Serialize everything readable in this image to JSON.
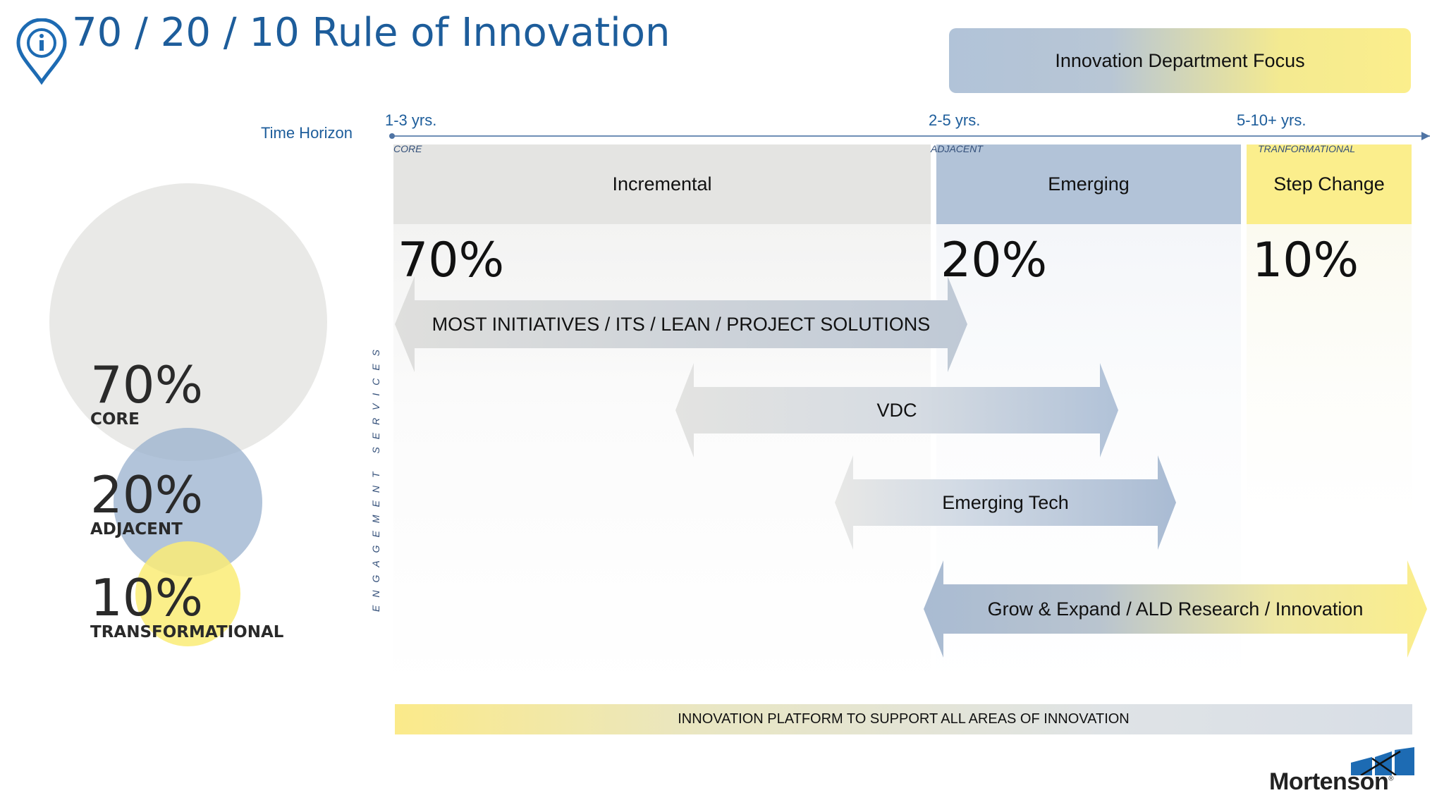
{
  "title": "70 / 20 / 10 Rule of Innovation",
  "focus_label": "Innovation Department Focus",
  "timeline": {
    "label": "Time Horizon",
    "ticks": [
      "1-3 yrs.",
      "2-5 yrs.",
      "5-10+ yrs."
    ]
  },
  "columns": [
    {
      "tag": "CORE",
      "name": "Incremental",
      "percent": "70%",
      "color": "#e4e4e2"
    },
    {
      "tag": "ADJACENT",
      "name": "Emerging",
      "percent": "20%",
      "color": "#b2c3d8"
    },
    {
      "tag": "TRANFORMATIONAL",
      "name": "Step Change",
      "percent": "10%",
      "color": "#fbee8c"
    }
  ],
  "engagement_label": "ENGAGEMENT SERVICES",
  "arrows": [
    {
      "label": "MOST INITIATIVES / ITS / LEAN / PROJECT SOLUTIONS"
    },
    {
      "label": "VDC"
    },
    {
      "label": "Emerging Tech"
    },
    {
      "label": "Grow & Expand / ALD Research / Innovation"
    }
  ],
  "platform_label": "INNOVATION PLATFORM TO SUPPORT ALL AREAS OF INNOVATION",
  "venn": [
    {
      "percent": "70%",
      "label": "CORE",
      "color": "#d7d7d4"
    },
    {
      "percent": "20%",
      "label": "ADJACENT",
      "color": "#98b0ce"
    },
    {
      "percent": "10%",
      "label": "TRANSFORMATIONAL",
      "color": "#faec76"
    }
  ],
  "logo": {
    "text": "Mortenson",
    "mark": "®"
  },
  "icons": [
    "info-pin-icon",
    "mortenson-logo"
  ]
}
